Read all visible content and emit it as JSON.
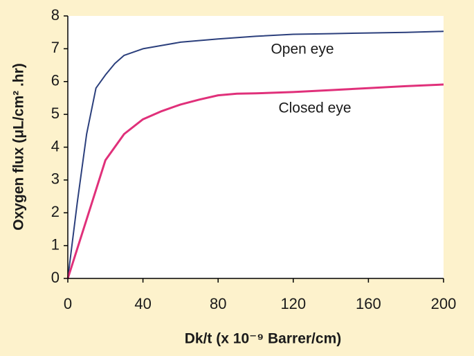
{
  "chart_data": {
    "type": "line",
    "xlabel": "Dk/t (x 10⁻⁹ Barrer/cm)",
    "ylabel": "Oxygen flux (μL/cm² .hr)",
    "xlim": [
      0,
      200
    ],
    "xticks": [
      0,
      40,
      80,
      120,
      160,
      200
    ],
    "ylim": [
      0,
      8
    ],
    "yticks": [
      0,
      1,
      2,
      3,
      4,
      5,
      6,
      7,
      8
    ],
    "series": [
      {
        "name": "Open eye",
        "color": "#2b3f7c",
        "x": [
          0,
          5,
          10,
          15,
          20,
          25,
          30,
          40,
          50,
          60,
          80,
          100,
          120,
          140,
          160,
          180,
          200
        ],
        "values": [
          0,
          2.3,
          4.4,
          5.8,
          6.2,
          6.55,
          6.8,
          7.0,
          7.1,
          7.2,
          7.3,
          7.38,
          7.44,
          7.46,
          7.48,
          7.5,
          7.53
        ]
      },
      {
        "name": "Closed eye",
        "color": "#e0307a",
        "x": [
          0,
          10,
          20,
          30,
          40,
          50,
          60,
          70,
          80,
          90,
          100,
          120,
          140,
          160,
          180,
          200
        ],
        "values": [
          0,
          1.8,
          3.6,
          4.4,
          4.85,
          5.1,
          5.3,
          5.45,
          5.58,
          5.63,
          5.64,
          5.68,
          5.74,
          5.8,
          5.86,
          5.91
        ]
      }
    ]
  }
}
